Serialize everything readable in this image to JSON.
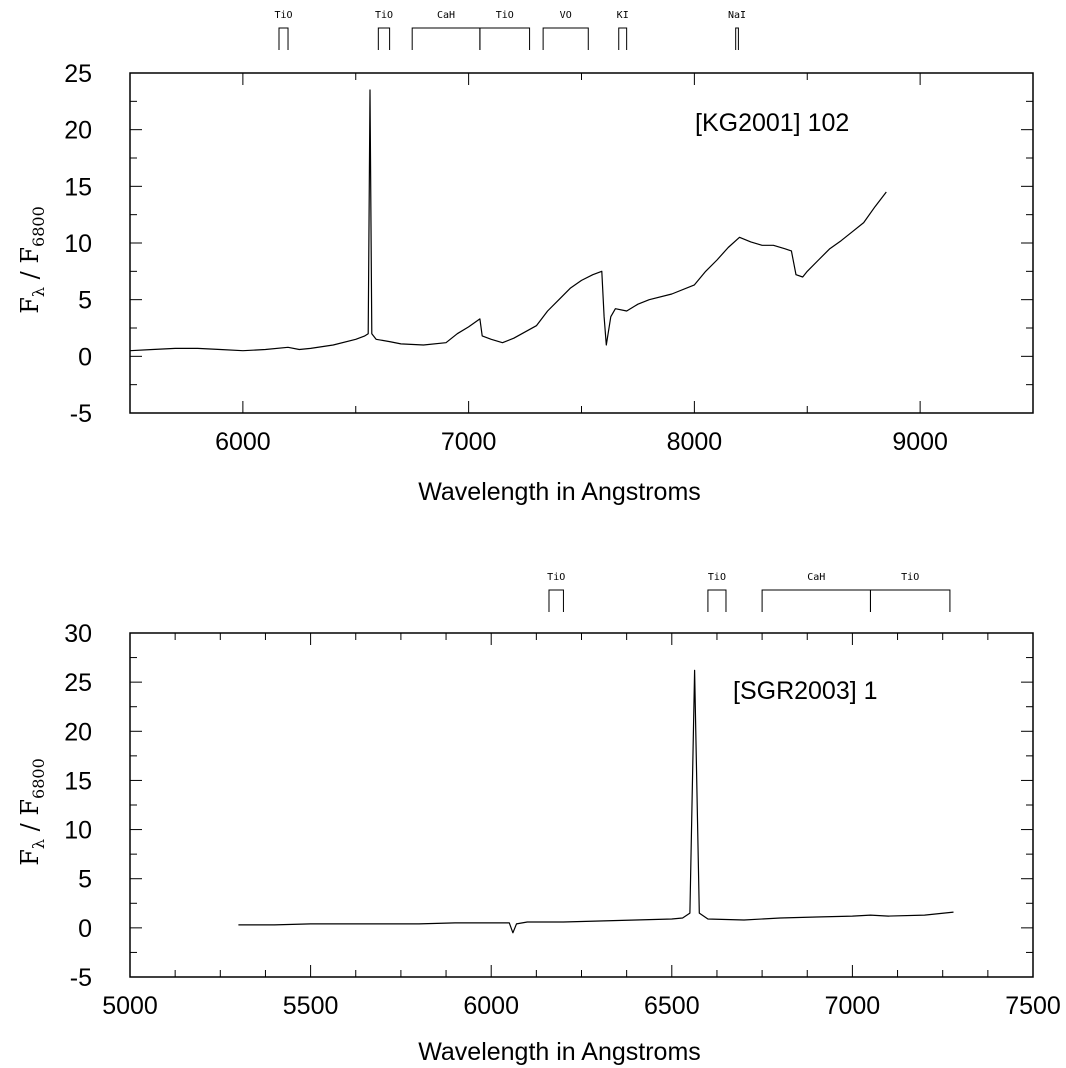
{
  "chart_data": [
    {
      "type": "line",
      "annotation": "[KG2001] 102",
      "xlabel": "Wavelength in Angstroms",
      "ylabel": "F_λ / F_6800",
      "xlim": [
        5500,
        9500
      ],
      "ylim": [
        -5,
        25
      ],
      "xticks": [
        6000,
        7000,
        8000,
        9000
      ],
      "yticks": [
        -5,
        0,
        5,
        10,
        15,
        20,
        25
      ],
      "grid": false,
      "bands": [
        {
          "label": "TiO",
          "range": [
            6160,
            6200
          ]
        },
        {
          "label": "TiO",
          "range": [
            6600,
            6650
          ]
        },
        {
          "label": "CaH",
          "range": [
            6750,
            7050
          ]
        },
        {
          "label": "TiO",
          "range": [
            7050,
            7270
          ]
        },
        {
          "label": "VO",
          "range": [
            7330,
            7530
          ]
        },
        {
          "label": "KI",
          "range": [
            7665,
            7700
          ]
        },
        {
          "label": "NaI",
          "range": [
            8183,
            8195
          ]
        }
      ],
      "series": [
        {
          "x": [
            5500,
            5600,
            5700,
            5800,
            5900,
            6000,
            6100,
            6200,
            6250,
            6300,
            6400,
            6500,
            6540,
            6555,
            6563,
            6571,
            6590,
            6650,
            6700,
            6800,
            6900,
            6950,
            7000,
            7050,
            7060,
            7100,
            7150,
            7200,
            7300,
            7350,
            7400,
            7450,
            7500,
            7550,
            7590,
            7600,
            7610,
            7630,
            7650,
            7700,
            7750,
            7800,
            7900,
            8000,
            8050,
            8100,
            8150,
            8200,
            8250,
            8300,
            8350,
            8400,
            8430,
            8450,
            8480,
            8500,
            8550,
            8600,
            8650,
            8700,
            8750,
            8800,
            8850
          ],
          "y": [
            0.5,
            0.6,
            0.7,
            0.7,
            0.6,
            0.5,
            0.6,
            0.8,
            0.6,
            0.7,
            1.0,
            1.5,
            1.8,
            2.0,
            23.5,
            2.0,
            1.5,
            1.3,
            1.1,
            1.0,
            1.2,
            2.0,
            2.6,
            3.3,
            1.8,
            1.5,
            1.2,
            1.6,
            2.7,
            4.0,
            5.0,
            6.0,
            6.7,
            7.2,
            7.5,
            3.5,
            1.0,
            3.5,
            4.2,
            4.0,
            4.6,
            5.0,
            5.5,
            6.3,
            7.5,
            8.5,
            9.6,
            10.5,
            10.1,
            9.8,
            9.8,
            9.5,
            9.3,
            7.2,
            7.0,
            7.5,
            8.5,
            9.5,
            10.2,
            11.0,
            11.8,
            13.2,
            14.5
          ]
        }
      ]
    },
    {
      "type": "line",
      "annotation": "[SGR2003] 1",
      "xlabel": "Wavelength in Angstroms",
      "ylabel": "F_λ / F_6800",
      "xlim": [
        5000,
        7500
      ],
      "ylim": [
        -5,
        30
      ],
      "xticks": [
        5000,
        5500,
        6000,
        6500,
        7000,
        7500
      ],
      "yticks": [
        -5,
        0,
        5,
        10,
        15,
        20,
        25,
        30
      ],
      "grid": false,
      "bands": [
        {
          "label": "TiO",
          "range": [
            6160,
            6200
          ]
        },
        {
          "label": "TiO",
          "range": [
            6600,
            6650
          ]
        },
        {
          "label": "CaH",
          "range": [
            6750,
            7050
          ]
        },
        {
          "label": "TiO",
          "range": [
            7050,
            7270
          ]
        }
      ],
      "series": [
        {
          "x": [
            5300,
            5400,
            5500,
            5600,
            5700,
            5800,
            5900,
            6000,
            6050,
            6060,
            6070,
            6100,
            6200,
            6300,
            6400,
            6500,
            6530,
            6550,
            6563,
            6576,
            6600,
            6700,
            6800,
            6900,
            7000,
            7050,
            7100,
            7200,
            7280
          ],
          "y": [
            0.3,
            0.3,
            0.4,
            0.4,
            0.4,
            0.4,
            0.5,
            0.5,
            0.5,
            -0.5,
            0.4,
            0.6,
            0.6,
            0.7,
            0.8,
            0.9,
            1.0,
            1.5,
            26.2,
            1.5,
            0.9,
            0.8,
            1.0,
            1.1,
            1.2,
            1.3,
            1.2,
            1.3,
            1.6
          ]
        }
      ]
    }
  ]
}
